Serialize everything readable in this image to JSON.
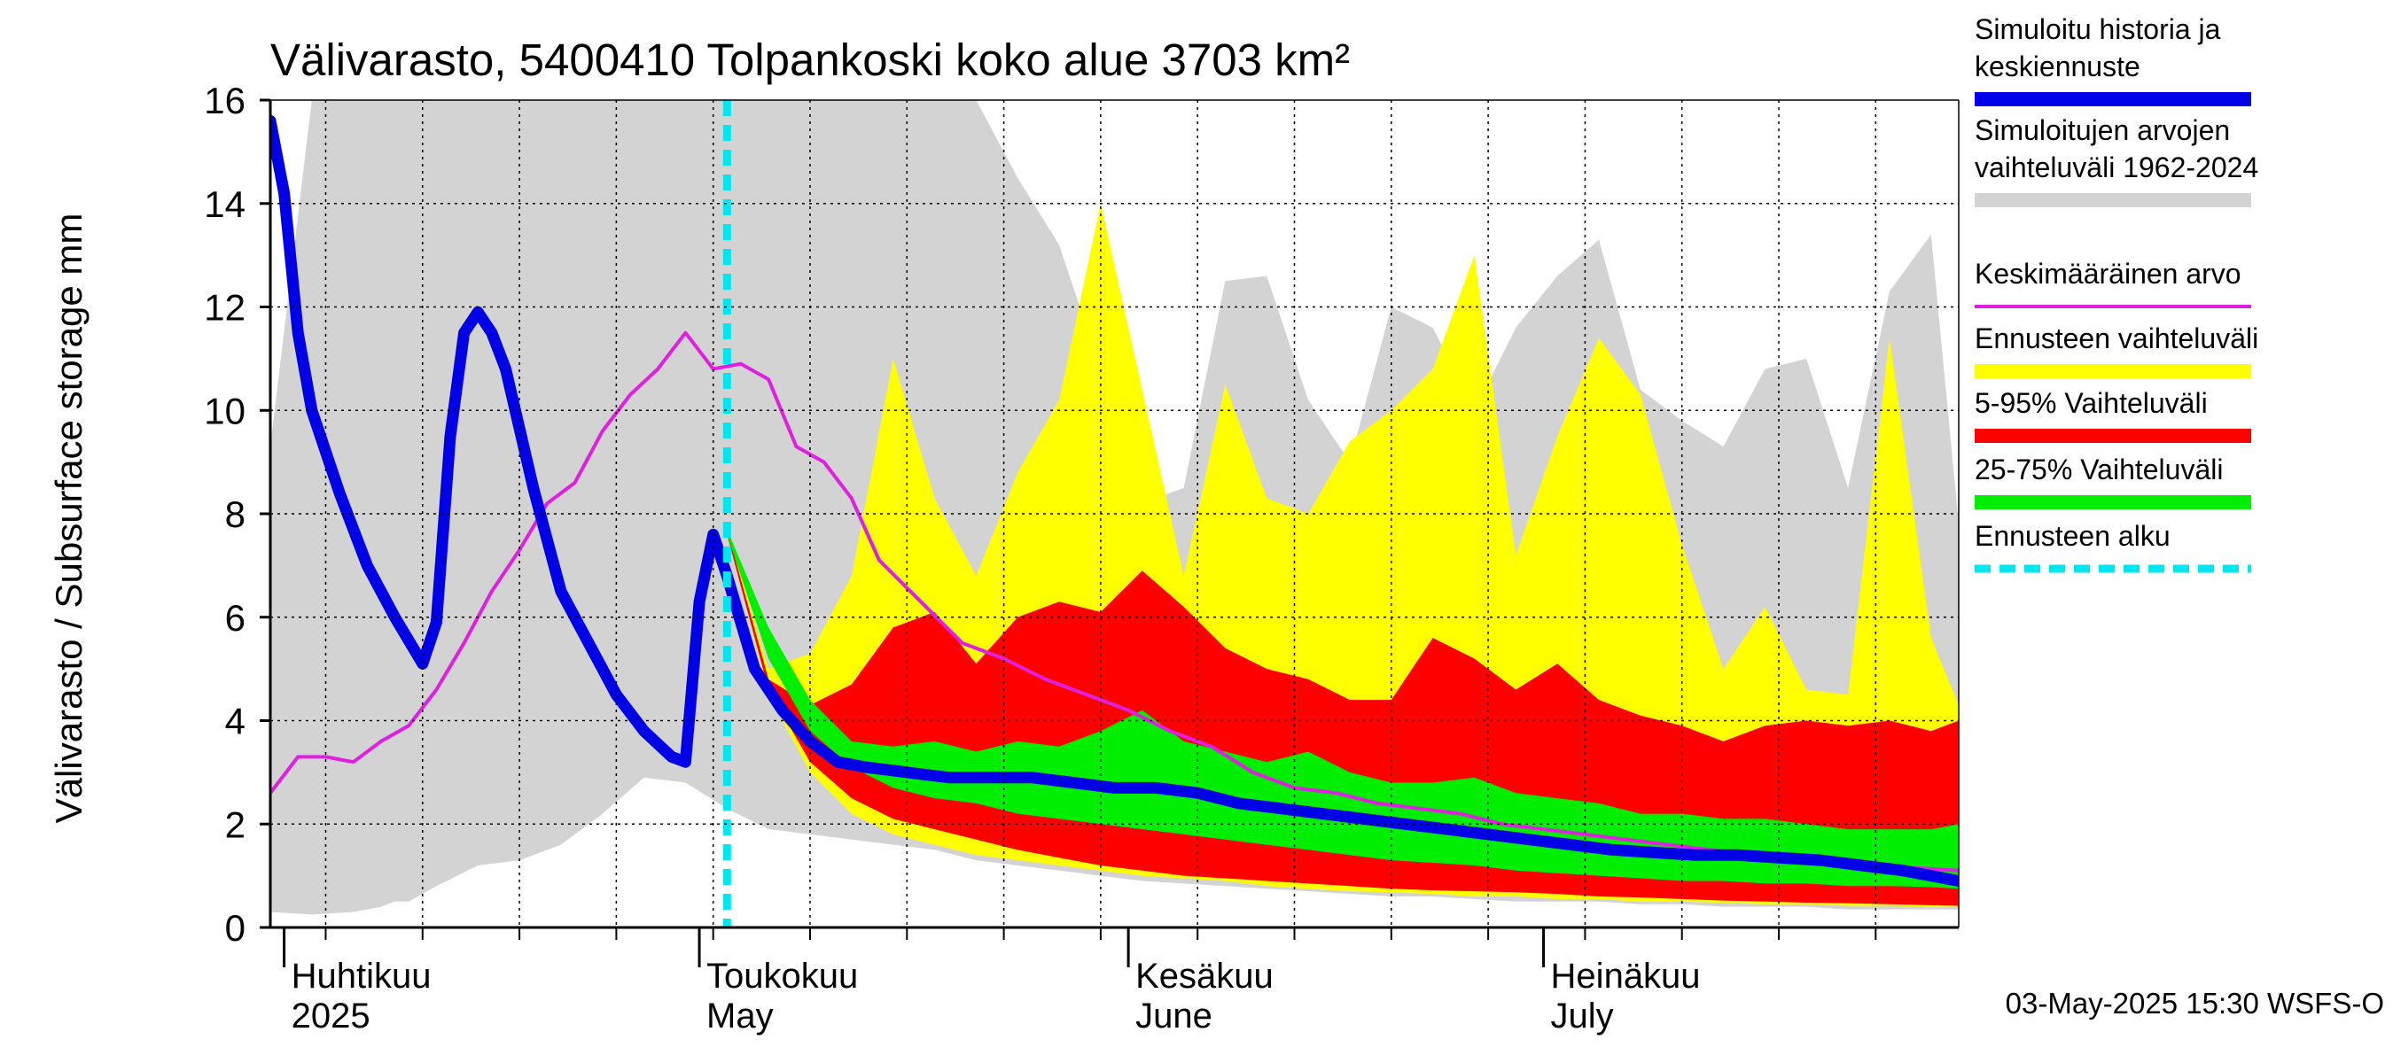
{
  "chart_data": {
    "type": "area",
    "title": "Välivarasto, 5400410 Tolpankoski koko alue 3703 km²",
    "ylabel": "Välivarasto / Subsurface storage  mm",
    "xlabel": "",
    "ylim": [
      0,
      16
    ],
    "y_ticks": [
      0,
      2,
      4,
      6,
      8,
      10,
      12,
      14,
      16
    ],
    "x_range": [
      "2025-03-31",
      "2025-07-31"
    ],
    "forecast_start": "2025-05-03",
    "x_month_labels": [
      {
        "date": "2025-04-01",
        "fi": "Huhtikuu",
        "en": "2025"
      },
      {
        "date": "2025-05-01",
        "fi": "Toukokuu",
        "en": "May"
      },
      {
        "date": "2025-06-01",
        "fi": "Kesäkuu",
        "en": "June"
      },
      {
        "date": "2025-07-01",
        "fi": "Heinäkuu",
        "en": "July"
      }
    ],
    "footer": "03-May-2025 15:30 WSFS-O",
    "legend": [
      {
        "label": "Simuloitu historia ja keskiennuste",
        "color": "#0000e6"
      },
      {
        "label": "Simuloitujen arvojen vaihteluväli 1962-2024",
        "color": "#d3d3d3"
      },
      {
        "label": "Keskimääräinen arvo",
        "color": "#e020e0"
      },
      {
        "label": "Ennusteen vaihteluväli",
        "color": "#ffff00"
      },
      {
        "label": "5-95% Vaihteluväli",
        "color": "#ff0000"
      },
      {
        "label": "25-75% Vaihteluväli",
        "color": "#00ee00"
      },
      {
        "label": "Ennusteen alku",
        "color": "#00e5ee"
      }
    ],
    "series": [
      {
        "name": "Simuloitujen arvojen vaihteluväli 1962-2024",
        "color": "#d3d3d3",
        "x": [
          "2025-03-31",
          "2025-04-03",
          "2025-04-06",
          "2025-04-07",
          "2025-04-08",
          "2025-04-09",
          "2025-04-10",
          "2025-04-12",
          "2025-04-15",
          "2025-04-18",
          "2025-04-21",
          "2025-04-24",
          "2025-04-27",
          "2025-04-30",
          "2025-05-03",
          "2025-05-06",
          "2025-05-09",
          "2025-05-12",
          "2025-05-15",
          "2025-05-18",
          "2025-05-21",
          "2025-05-24",
          "2025-05-27",
          "2025-05-30",
          "2025-06-02",
          "2025-06-05",
          "2025-06-08",
          "2025-06-11",
          "2025-06-14",
          "2025-06-17",
          "2025-06-20",
          "2025-06-23",
          "2025-06-26",
          "2025-06-29",
          "2025-07-02",
          "2025-07-05",
          "2025-07-08",
          "2025-07-11",
          "2025-07-14",
          "2025-07-17",
          "2025-07-20",
          "2025-07-23",
          "2025-07-26",
          "2025-07-29",
          "2025-07-31"
        ],
        "low": [
          0.3,
          0.25,
          0.3,
          0.35,
          0.4,
          0.5,
          0.5,
          0.8,
          1.2,
          1.3,
          1.6,
          2.2,
          2.9,
          2.8,
          2.3,
          1.9,
          1.8,
          1.7,
          1.6,
          1.5,
          1.3,
          1.2,
          1.1,
          1.0,
          0.9,
          0.85,
          0.8,
          0.75,
          0.7,
          0.65,
          0.6,
          0.6,
          0.55,
          0.5,
          0.5,
          0.5,
          0.45,
          0.45,
          0.4,
          0.4,
          0.4,
          0.35,
          0.35,
          0.35,
          0.35
        ],
        "high": [
          9.3,
          16,
          16,
          16,
          16,
          16,
          16,
          16,
          16,
          16,
          16,
          16,
          16,
          16,
          16,
          16,
          16,
          16,
          16,
          16,
          16,
          14.5,
          13.2,
          10.8,
          8.2,
          8.5,
          12.5,
          12.6,
          10.2,
          9.0,
          12.0,
          11.6,
          10.0,
          11.6,
          12.6,
          13.3,
          10.4,
          9.8,
          9.3,
          10.8,
          11.0,
          8.5,
          12.3,
          13.4,
          7.8
        ]
      },
      {
        "name": "Ennusteen vaihteluväli",
        "color": "#ffff00",
        "x": [
          "2025-05-03",
          "2025-05-06",
          "2025-05-09",
          "2025-05-12",
          "2025-05-15",
          "2025-05-18",
          "2025-05-21",
          "2025-05-24",
          "2025-05-27",
          "2025-05-30",
          "2025-06-02",
          "2025-06-05",
          "2025-06-08",
          "2025-06-11",
          "2025-06-14",
          "2025-06-17",
          "2025-06-20",
          "2025-06-23",
          "2025-06-26",
          "2025-06-29",
          "2025-07-02",
          "2025-07-05",
          "2025-07-08",
          "2025-07-11",
          "2025-07-14",
          "2025-07-17",
          "2025-07-20",
          "2025-07-23",
          "2025-07-26",
          "2025-07-29",
          "2025-07-31"
        ],
        "low": [
          7.7,
          4.5,
          3.0,
          2.2,
          1.8,
          1.6,
          1.4,
          1.3,
          1.2,
          1.1,
          1.0,
          0.95,
          0.9,
          0.8,
          0.75,
          0.7,
          0.68,
          0.65,
          0.6,
          0.6,
          0.55,
          0.55,
          0.5,
          0.5,
          0.48,
          0.45,
          0.45,
          0.42,
          0.42,
          0.4,
          0.4
        ],
        "high": [
          7.7,
          5.0,
          5.3,
          6.8,
          11.0,
          8.3,
          6.8,
          8.8,
          10.2,
          14.0,
          10.4,
          6.8,
          10.5,
          8.3,
          8.0,
          9.4,
          10.0,
          10.8,
          13.0,
          7.2,
          9.5,
          11.4,
          10.3,
          7.4,
          5.0,
          6.2,
          4.6,
          4.5,
          11.4,
          5.6,
          4.3
        ]
      },
      {
        "name": "5-95% Vaihteluväli",
        "color": "#ff0000",
        "x": [
          "2025-05-03",
          "2025-05-06",
          "2025-05-09",
          "2025-05-12",
          "2025-05-15",
          "2025-05-18",
          "2025-05-21",
          "2025-05-24",
          "2025-05-27",
          "2025-05-30",
          "2025-06-02",
          "2025-06-05",
          "2025-06-08",
          "2025-06-11",
          "2025-06-14",
          "2025-06-17",
          "2025-06-20",
          "2025-06-23",
          "2025-06-26",
          "2025-06-29",
          "2025-07-02",
          "2025-07-05",
          "2025-07-08",
          "2025-07-11",
          "2025-07-14",
          "2025-07-17",
          "2025-07-20",
          "2025-07-23",
          "2025-07-26",
          "2025-07-29",
          "2025-07-31"
        ],
        "low": [
          7.6,
          4.6,
          3.2,
          2.5,
          2.1,
          1.9,
          1.7,
          1.5,
          1.35,
          1.2,
          1.1,
          1.0,
          0.95,
          0.9,
          0.85,
          0.8,
          0.75,
          0.72,
          0.7,
          0.68,
          0.65,
          0.6,
          0.58,
          0.55,
          0.52,
          0.5,
          0.48,
          0.47,
          0.45,
          0.43,
          0.42
        ],
        "high": [
          7.7,
          4.8,
          4.3,
          4.7,
          5.8,
          6.1,
          5.1,
          6.0,
          6.3,
          6.1,
          6.9,
          6.2,
          5.4,
          5.0,
          4.8,
          4.4,
          4.4,
          5.6,
          5.2,
          4.6,
          5.1,
          4.4,
          4.1,
          3.9,
          3.6,
          3.9,
          4.0,
          3.9,
          4.0,
          3.8,
          4.0
        ]
      },
      {
        "name": "25-75% Vaihteluväli",
        "color": "#00ee00",
        "x": [
          "2025-05-03",
          "2025-05-06",
          "2025-05-09",
          "2025-05-12",
          "2025-05-15",
          "2025-05-18",
          "2025-05-21",
          "2025-05-24",
          "2025-05-27",
          "2025-05-30",
          "2025-06-02",
          "2025-06-05",
          "2025-06-08",
          "2025-06-11",
          "2025-06-14",
          "2025-06-17",
          "2025-06-20",
          "2025-06-23",
          "2025-06-26",
          "2025-06-29",
          "2025-07-02",
          "2025-07-05",
          "2025-07-08",
          "2025-07-11",
          "2025-07-14",
          "2025-07-17",
          "2025-07-20",
          "2025-07-23",
          "2025-07-26",
          "2025-07-29",
          "2025-07-31"
        ],
        "low": [
          7.6,
          5.2,
          3.8,
          3.1,
          2.7,
          2.5,
          2.4,
          2.2,
          2.1,
          2.0,
          1.9,
          1.8,
          1.7,
          1.6,
          1.5,
          1.4,
          1.3,
          1.25,
          1.2,
          1.1,
          1.05,
          1.0,
          0.95,
          0.9,
          0.9,
          0.85,
          0.85,
          0.8,
          0.8,
          0.78,
          0.75
        ],
        "high": [
          7.7,
          5.8,
          4.4,
          3.6,
          3.5,
          3.6,
          3.4,
          3.6,
          3.5,
          3.8,
          4.2,
          3.6,
          3.4,
          3.2,
          3.4,
          3.0,
          2.8,
          2.8,
          2.9,
          2.6,
          2.5,
          2.4,
          2.2,
          2.2,
          2.1,
          2.1,
          2.0,
          1.9,
          1.9,
          1.9,
          2.0
        ]
      },
      {
        "name": "Keskimääräinen arvo",
        "color": "#e020e0",
        "x": [
          "2025-03-31",
          "2025-04-02",
          "2025-04-04",
          "2025-04-06",
          "2025-04-08",
          "2025-04-10",
          "2025-04-12",
          "2025-04-14",
          "2025-04-16",
          "2025-04-18",
          "2025-04-20",
          "2025-04-22",
          "2025-04-24",
          "2025-04-26",
          "2025-04-28",
          "2025-04-30",
          "2025-05-02",
          "2025-05-04",
          "2025-05-06",
          "2025-05-08",
          "2025-05-10",
          "2025-05-12",
          "2025-05-14",
          "2025-05-17",
          "2025-05-20",
          "2025-05-23",
          "2025-05-26",
          "2025-05-29",
          "2025-06-01",
          "2025-06-04",
          "2025-06-07",
          "2025-06-10",
          "2025-06-13",
          "2025-06-16",
          "2025-06-19",
          "2025-06-22",
          "2025-06-25",
          "2025-06-28",
          "2025-07-01",
          "2025-07-04",
          "2025-07-07",
          "2025-07-10",
          "2025-07-13",
          "2025-07-16",
          "2025-07-19",
          "2025-07-22",
          "2025-07-25",
          "2025-07-28",
          "2025-07-31"
        ],
        "y": [
          2.6,
          3.3,
          3.3,
          3.2,
          3.6,
          3.9,
          4.6,
          5.5,
          6.5,
          7.3,
          8.2,
          8.6,
          9.6,
          10.3,
          10.8,
          11.5,
          10.8,
          10.9,
          10.6,
          9.3,
          9.0,
          8.3,
          7.1,
          6.3,
          5.5,
          5.2,
          4.8,
          4.5,
          4.2,
          3.8,
          3.5,
          3.0,
          2.7,
          2.6,
          2.4,
          2.3,
          2.2,
          2.0,
          1.9,
          1.8,
          1.7,
          1.6,
          1.5,
          1.4,
          1.35,
          1.3,
          1.2,
          1.15,
          1.1
        ]
      },
      {
        "name": "Simuloitu historia ja keskiennuste",
        "color": "#0000e6",
        "x": [
          "2025-03-31",
          "2025-04-01",
          "2025-04-02",
          "2025-04-03",
          "2025-04-05",
          "2025-04-07",
          "2025-04-09",
          "2025-04-11",
          "2025-04-12",
          "2025-04-13",
          "2025-04-14",
          "2025-04-15",
          "2025-04-16",
          "2025-04-17",
          "2025-04-19",
          "2025-04-21",
          "2025-04-23",
          "2025-04-25",
          "2025-04-27",
          "2025-04-29",
          "2025-04-30",
          "2025-05-01",
          "2025-05-02",
          "2025-05-03",
          "2025-05-05",
          "2025-05-07",
          "2025-05-09",
          "2025-05-11",
          "2025-05-13",
          "2025-05-16",
          "2025-05-19",
          "2025-05-22",
          "2025-05-25",
          "2025-05-28",
          "2025-05-31",
          "2025-06-03",
          "2025-06-06",
          "2025-06-09",
          "2025-06-12",
          "2025-06-15",
          "2025-06-18",
          "2025-06-21",
          "2025-06-24",
          "2025-06-27",
          "2025-06-30",
          "2025-07-03",
          "2025-07-06",
          "2025-07-09",
          "2025-07-12",
          "2025-07-15",
          "2025-07-18",
          "2025-07-21",
          "2025-07-24",
          "2025-07-27",
          "2025-07-31"
        ],
        "y": [
          15.6,
          14.2,
          11.5,
          10.0,
          8.4,
          7.0,
          6.0,
          5.1,
          5.9,
          9.5,
          11.5,
          11.9,
          11.5,
          10.8,
          8.5,
          6.5,
          5.5,
          4.5,
          3.8,
          3.3,
          3.2,
          6.3,
          7.6,
          6.8,
          5.0,
          4.2,
          3.6,
          3.2,
          3.1,
          3.0,
          2.9,
          2.9,
          2.9,
          2.8,
          2.7,
          2.7,
          2.6,
          2.4,
          2.3,
          2.2,
          2.1,
          2.0,
          1.9,
          1.8,
          1.7,
          1.6,
          1.5,
          1.45,
          1.4,
          1.4,
          1.35,
          1.3,
          1.2,
          1.1,
          0.9
        ]
      }
    ]
  }
}
